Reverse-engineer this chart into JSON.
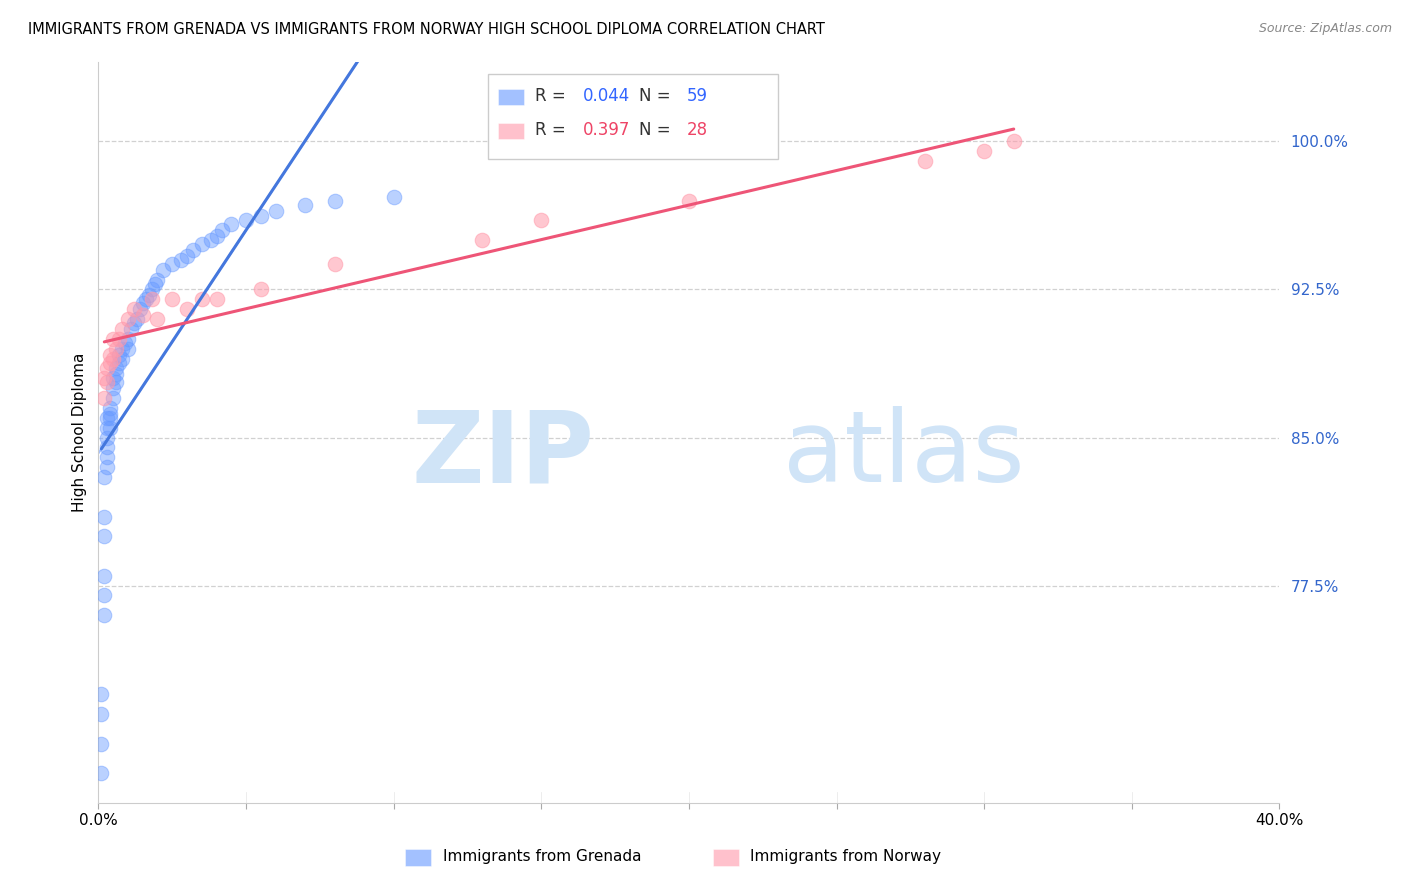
{
  "title": "IMMIGRANTS FROM GRENADA VS IMMIGRANTS FROM NORWAY HIGH SCHOOL DIPLOMA CORRELATION CHART",
  "source": "Source: ZipAtlas.com",
  "ylabel": "High School Diploma",
  "xlim": [
    0.0,
    0.4
  ],
  "ylim": [
    0.665,
    1.04
  ],
  "grenada_R": 0.044,
  "grenada_N": 59,
  "norway_R": 0.397,
  "norway_N": 28,
  "grenada_color": "#6699ff",
  "norway_color": "#ff99aa",
  "grenada_line_color": "#4477dd",
  "norway_line_color": "#ee5577",
  "dashed_line_color": "#99bbff",
  "watermark_color": "#d0e4f7",
  "ytick_positions": [
    0.775,
    0.85,
    0.925,
    1.0
  ],
  "ytick_labels": [
    "77.5%",
    "85.0%",
    "92.5%",
    "100.0%"
  ],
  "xtick_positions": [
    0.0,
    0.05,
    0.1,
    0.15,
    0.2,
    0.25,
    0.3,
    0.35,
    0.4
  ],
  "grenada_x": [
    0.001,
    0.001,
    0.001,
    0.001,
    0.002,
    0.002,
    0.002,
    0.002,
    0.002,
    0.002,
    0.003,
    0.003,
    0.003,
    0.003,
    0.003,
    0.003,
    0.004,
    0.004,
    0.004,
    0.004,
    0.005,
    0.005,
    0.005,
    0.006,
    0.006,
    0.006,
    0.007,
    0.007,
    0.008,
    0.008,
    0.009,
    0.01,
    0.01,
    0.011,
    0.012,
    0.013,
    0.014,
    0.015,
    0.016,
    0.017,
    0.018,
    0.019,
    0.02,
    0.022,
    0.025,
    0.028,
    0.03,
    0.032,
    0.035,
    0.038,
    0.04,
    0.042,
    0.045,
    0.05,
    0.055,
    0.06,
    0.07,
    0.08,
    0.1
  ],
  "grenada_y": [
    0.68,
    0.695,
    0.71,
    0.72,
    0.76,
    0.77,
    0.78,
    0.8,
    0.81,
    0.83,
    0.835,
    0.84,
    0.845,
    0.85,
    0.855,
    0.86,
    0.855,
    0.86,
    0.862,
    0.865,
    0.87,
    0.875,
    0.88,
    0.878,
    0.882,
    0.885,
    0.888,
    0.892,
    0.89,
    0.895,
    0.898,
    0.895,
    0.9,
    0.905,
    0.908,
    0.91,
    0.915,
    0.918,
    0.92,
    0.922,
    0.925,
    0.928,
    0.93,
    0.935,
    0.938,
    0.94,
    0.942,
    0.945,
    0.948,
    0.95,
    0.952,
    0.955,
    0.958,
    0.96,
    0.962,
    0.965,
    0.968,
    0.97,
    0.972
  ],
  "norway_x": [
    0.002,
    0.002,
    0.003,
    0.003,
    0.004,
    0.004,
    0.005,
    0.005,
    0.006,
    0.007,
    0.008,
    0.01,
    0.012,
    0.015,
    0.018,
    0.02,
    0.025,
    0.03,
    0.035,
    0.04,
    0.055,
    0.08,
    0.13,
    0.15,
    0.2,
    0.28,
    0.3,
    0.31
  ],
  "norway_y": [
    0.87,
    0.88,
    0.878,
    0.885,
    0.888,
    0.892,
    0.89,
    0.9,
    0.895,
    0.9,
    0.905,
    0.91,
    0.915,
    0.912,
    0.92,
    0.91,
    0.92,
    0.915,
    0.92,
    0.92,
    0.925,
    0.938,
    0.95,
    0.96,
    0.97,
    0.99,
    0.995,
    1.0
  ]
}
